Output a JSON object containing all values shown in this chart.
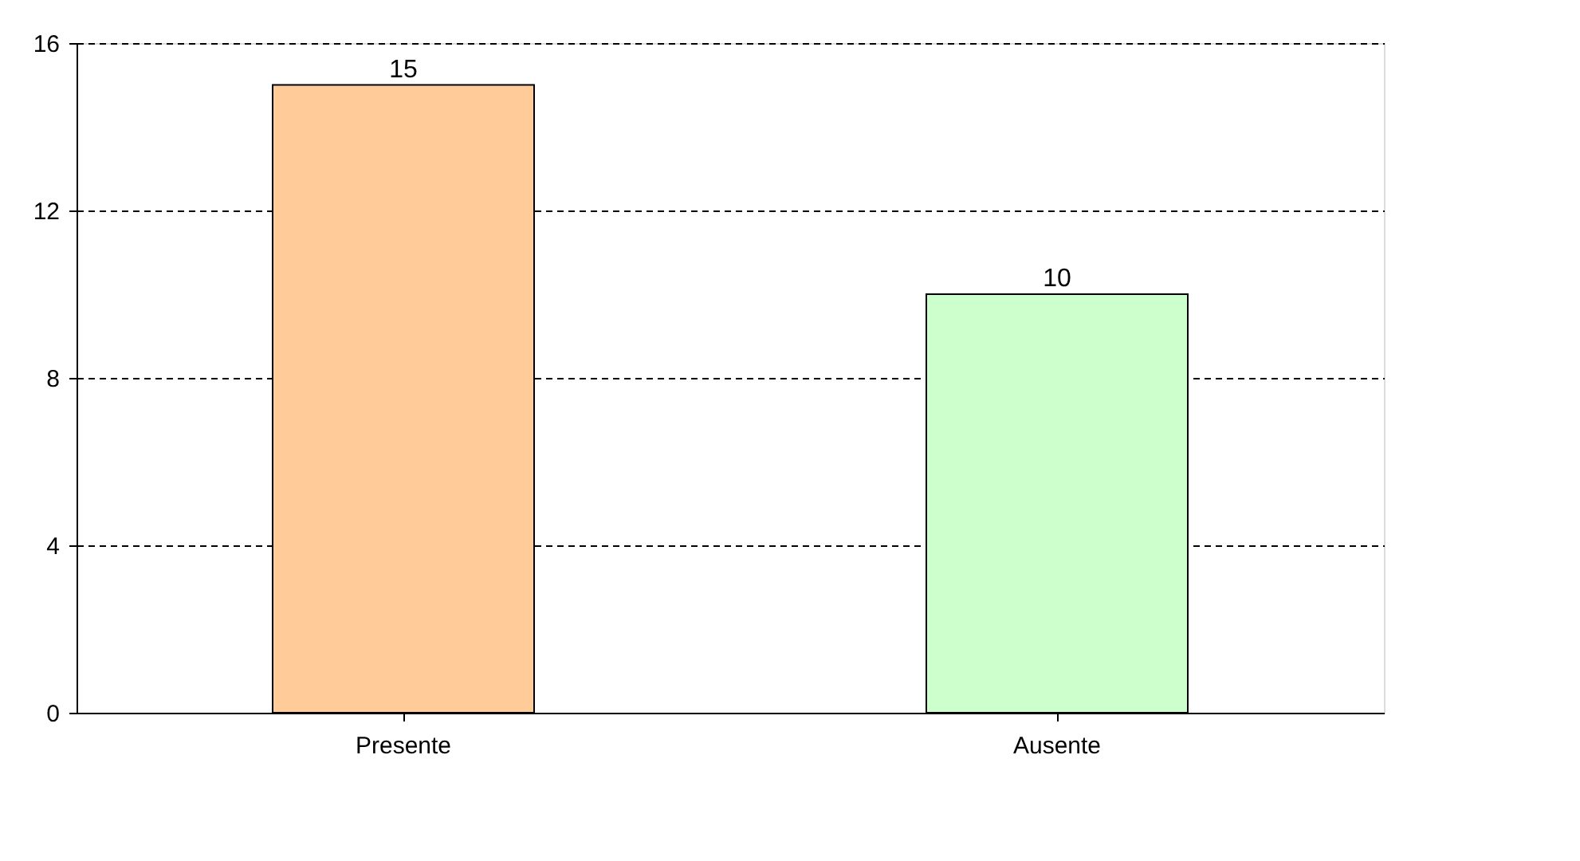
{
  "chart_data": {
    "type": "bar",
    "categories": [
      "Presente",
      "Ausente"
    ],
    "values": [
      15,
      10
    ],
    "colors": [
      "#ffcc99",
      "#ccffcc"
    ],
    "ylim": [
      0,
      16
    ],
    "yticks": [
      0,
      4,
      8,
      12,
      16
    ],
    "grid": "y",
    "data_labels": true
  }
}
